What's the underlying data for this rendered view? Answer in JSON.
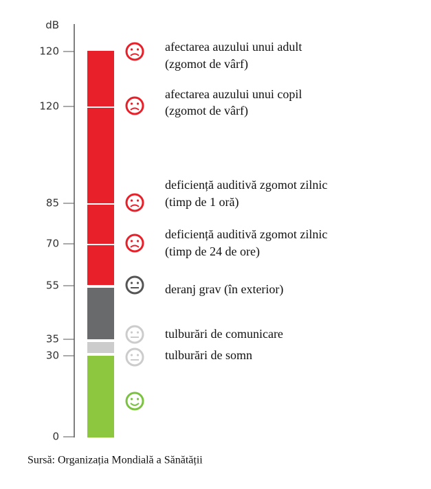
{
  "scale": {
    "unit": "dB"
  },
  "levels": [
    {
      "db": 120,
      "lines": [
        "afectarea auzului unui adult",
        "(zgomot de vârf)"
      ]
    },
    {
      "db": 120,
      "lines": [
        "afectarea auzului unui copil",
        "(zgomot de vârf)"
      ]
    },
    {
      "db": 85,
      "lines": [
        "deficiență auditivă zgomot zilnic",
        "(timp de 1 oră)"
      ]
    },
    {
      "db": 70,
      "lines": [
        "deficiență auditivă zgomot zilnic",
        "(timp de 24 de ore)"
      ]
    },
    {
      "db": 55,
      "lines": [
        "deranj grav (în exterior)"
      ]
    },
    {
      "db": 35,
      "lines": [
        "tulburări de comunicare"
      ]
    },
    {
      "db": 30,
      "lines": [
        "tulburări de somn"
      ]
    },
    {
      "db": 0
    }
  ],
  "source": "Sursă: Organizația Mondială a Sănătății"
}
